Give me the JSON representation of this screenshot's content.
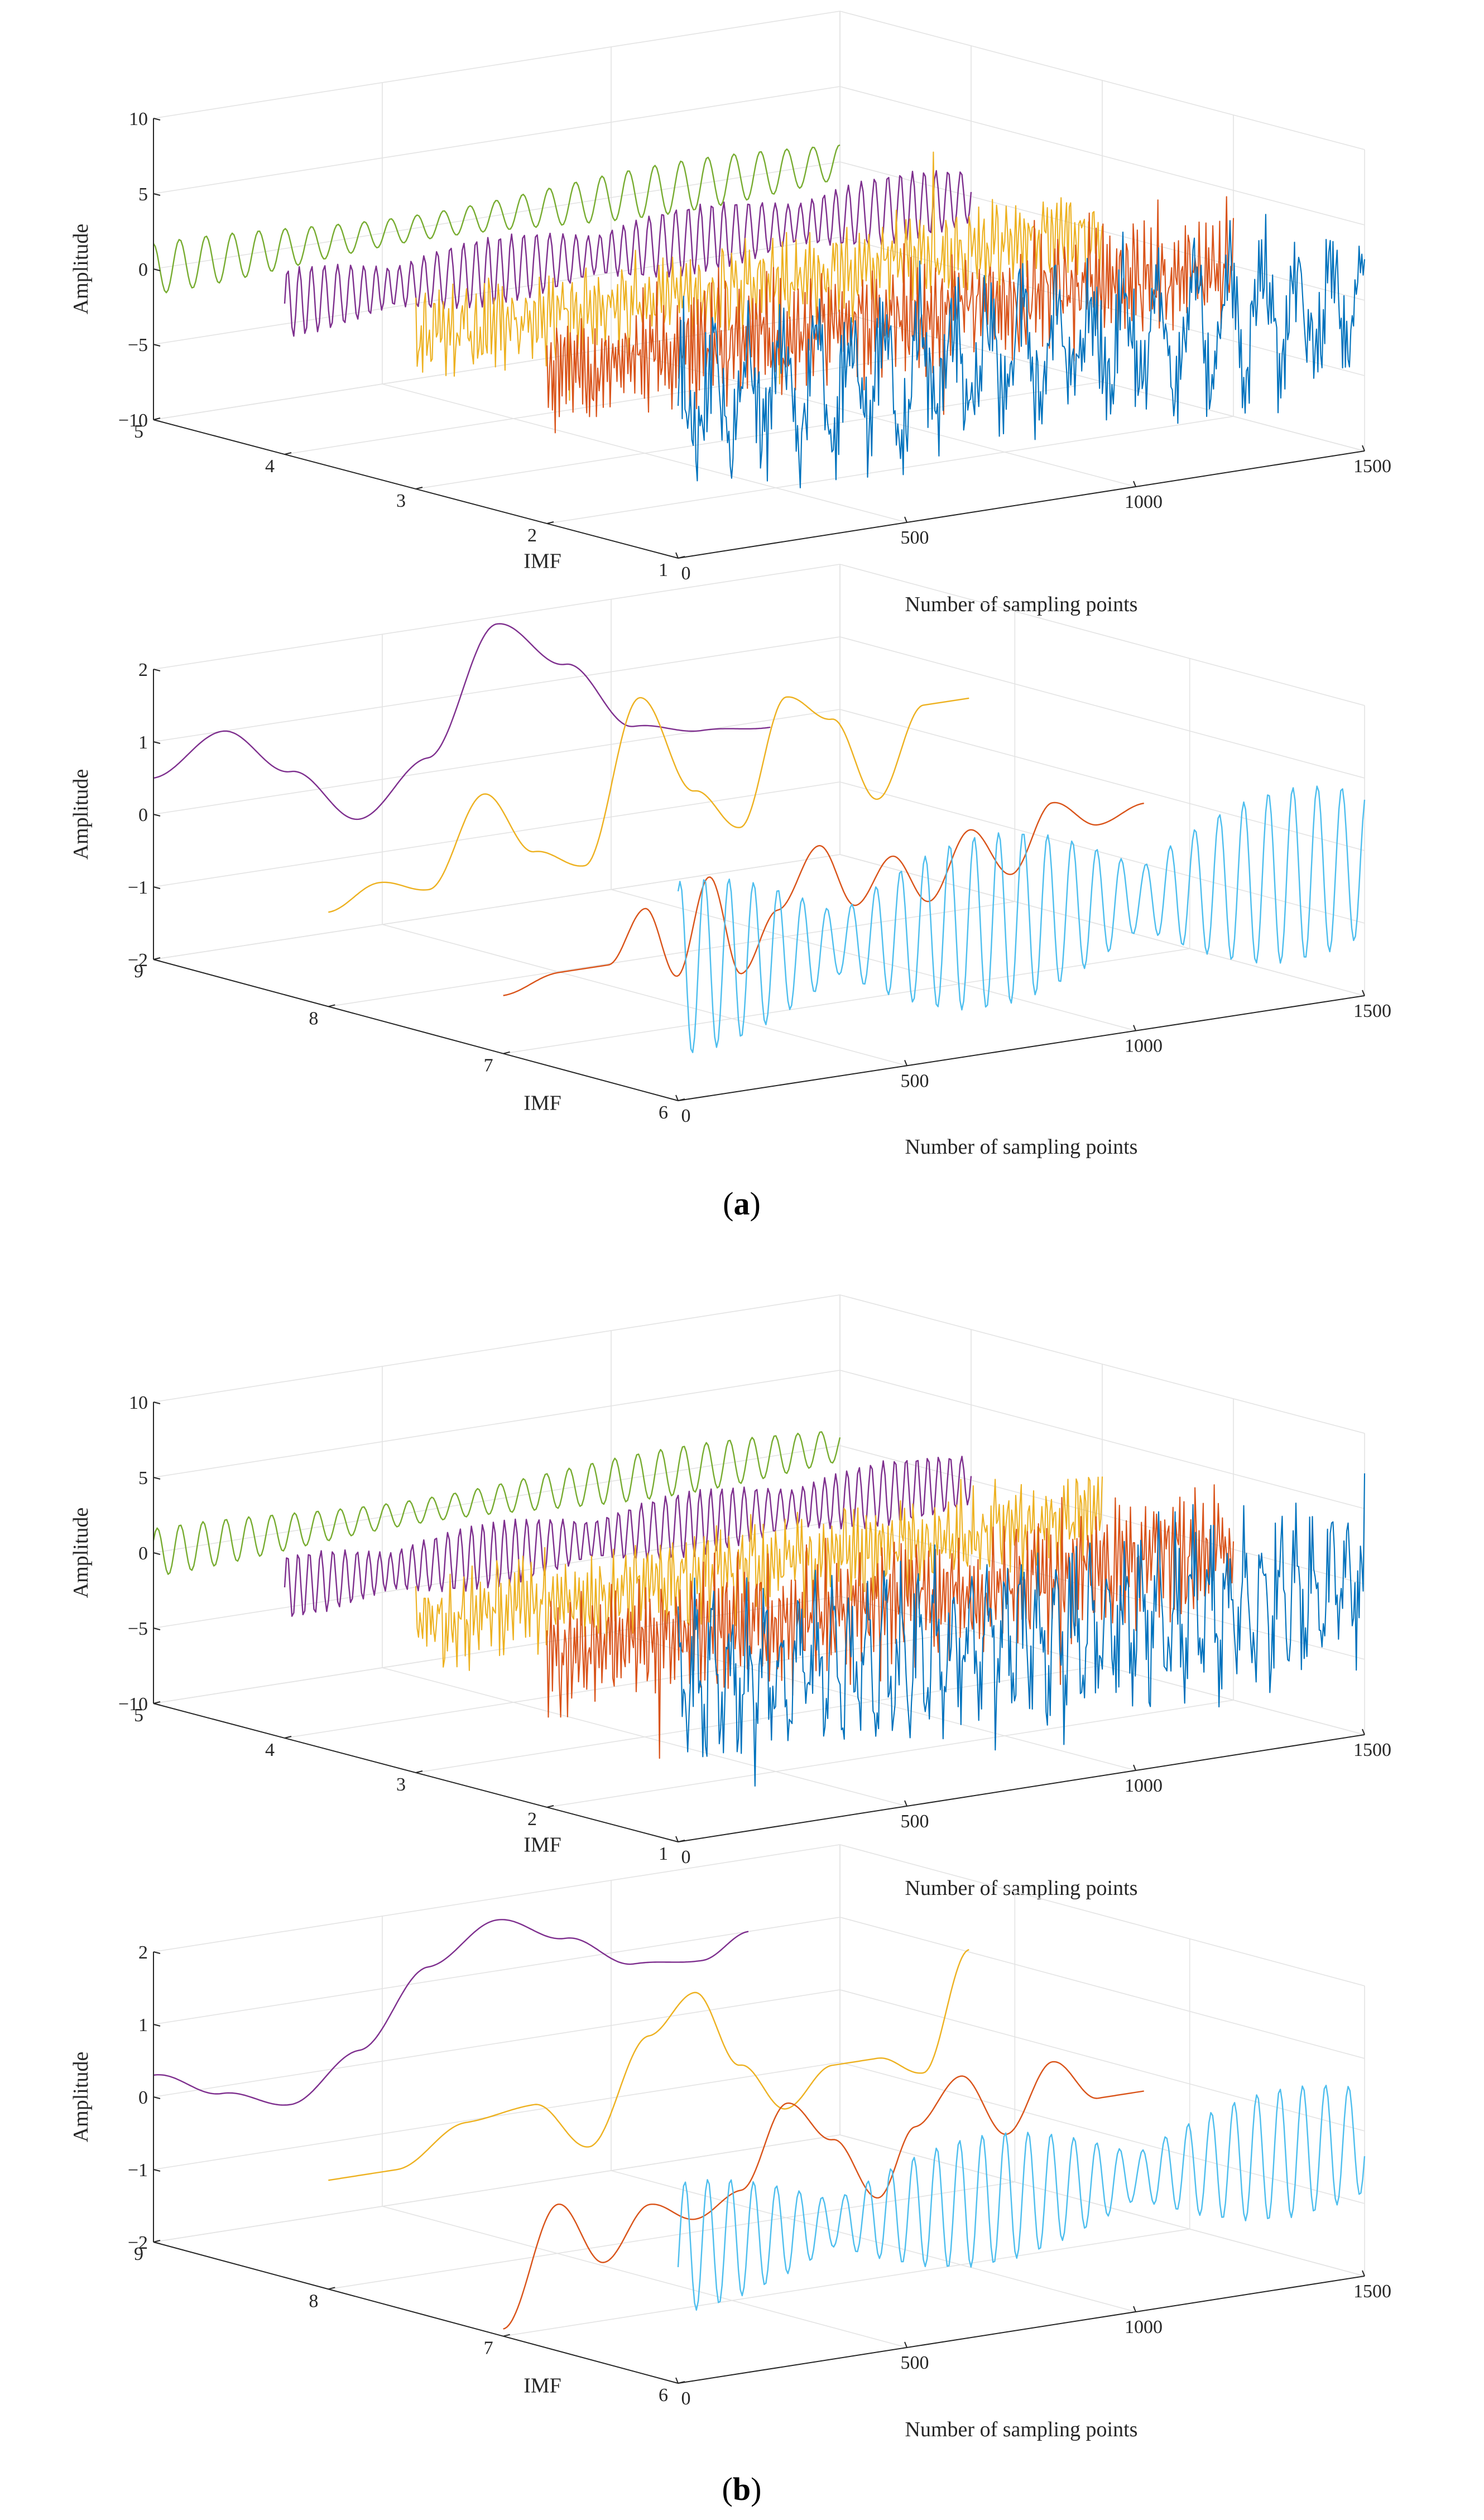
{
  "figure": {
    "panels": [
      {
        "label": "a",
        "charts": [
          {
            "name": "a-top",
            "type": "line",
            "projection": "3d",
            "title": "",
            "xlabel": "Number of sampling points",
            "ylabel": "IMF",
            "zlabel": "Amplitude",
            "xlim": [
              0,
              1500
            ],
            "ylim": [
              1,
              5
            ],
            "zlim": [
              -10,
              10
            ],
            "xticks": [
              "0",
              "500",
              "1000",
              "1500"
            ],
            "yticks": [
              "1",
              "2",
              "3",
              "4",
              "5"
            ],
            "zticks": [
              "−10",
              "−5",
              "0",
              "5",
              "10"
            ],
            "grid": true,
            "series": [
              {
                "name": "IMF5",
                "imf": 5,
                "color": "#77ac30",
                "amplitude": 1.7,
                "periods": 26,
                "kind": "smooth",
                "seed": 11
              },
              {
                "name": "IMF4",
                "imf": 4,
                "color": "#7e2f8e",
                "amplitude": 2.3,
                "periods": 55,
                "kind": "wiggle",
                "seed": 12
              },
              {
                "name": "IMF3",
                "imf": 3,
                "color": "#edb120",
                "amplitude": 3.2,
                "periods": 150,
                "kind": "noise",
                "seed": 13
              },
              {
                "name": "IMF2",
                "imf": 2,
                "color": "#d95319",
                "amplitude": 4.3,
                "periods": 300,
                "kind": "noise",
                "seed": 14
              },
              {
                "name": "IMF1",
                "imf": 1,
                "color": "#0072bd",
                "amplitude": 6.0,
                "periods": 520,
                "kind": "noise",
                "seed": 15
              }
            ]
          },
          {
            "name": "a-bottom",
            "type": "line",
            "projection": "3d",
            "title": "",
            "xlabel": "Number of sampling points",
            "ylabel": "IMF",
            "zlabel": "Amplitude",
            "xlim": [
              0,
              1500
            ],
            "ylim": [
              6,
              9
            ],
            "zlim": [
              -2,
              2
            ],
            "xticks": [
              "0",
              "500",
              "1000",
              "1500"
            ],
            "yticks": [
              "6",
              "7",
              "8",
              "9"
            ],
            "zticks": [
              "−2",
              "−1",
              "0",
              "1",
              "2"
            ],
            "grid": true,
            "series": [
              {
                "name": "IMF9",
                "imf": 9,
                "color": "#7e2f8e",
                "samples": [
                  [
                    0,
                    0.5
                  ],
                  [
                    150,
                    1.0
                  ],
                  [
                    300,
                    0.3
                  ],
                  [
                    450,
                    -0.5
                  ],
                  [
                    600,
                    0.2
                  ],
                  [
                    750,
                    1.9
                  ],
                  [
                    900,
                    1.2
                  ],
                  [
                    1050,
                    0.2
                  ],
                  [
                    1200,
                    0.0
                  ],
                  [
                    1350,
                    -0.1
                  ]
                ]
              },
              {
                "name": "IMF8",
                "imf": 8,
                "color": "#edb120",
                "samples": [
                  [
                    0,
                    -0.7
                  ],
                  [
                    110,
                    -0.4
                  ],
                  [
                    220,
                    -0.6
                  ],
                  [
                    340,
                    0.6
                  ],
                  [
                    450,
                    -0.3
                  ],
                  [
                    560,
                    -0.6
                  ],
                  [
                    680,
                    1.6
                  ],
                  [
                    800,
                    0.2
                  ],
                  [
                    900,
                    -0.4
                  ],
                  [
                    1000,
                    1.3
                  ],
                  [
                    1100,
                    0.9
                  ],
                  [
                    1200,
                    -0.3
                  ],
                  [
                    1300,
                    0.9
                  ],
                  [
                    1400,
                    0.9
                  ]
                ]
              },
              {
                "name": "IMF7",
                "imf": 7,
                "color": "#d95319",
                "samples": [
                  [
                    0,
                    -1.2
                  ],
                  [
                    120,
                    -1.0
                  ],
                  [
                    230,
                    -1.0
                  ],
                  [
                    310,
                    -0.3
                  ],
                  [
                    380,
                    -1.3
                  ],
                  [
                    450,
                    0.0
                  ],
                  [
                    520,
                    -1.4
                  ],
                  [
                    600,
                    -0.6
                  ],
                  [
                    690,
                    0.2
                  ],
                  [
                    770,
                    -0.7
                  ],
                  [
                    850,
                    -0.1
                  ],
                  [
                    930,
                    -0.8
                  ],
                  [
                    1020,
                    0.1
                  ],
                  [
                    1110,
                    -0.6
                  ],
                  [
                    1200,
                    0.3
                  ],
                  [
                    1300,
                    -0.1
                  ],
                  [
                    1400,
                    0.1
                  ]
                ]
              },
              {
                "name": "IMF6",
                "imf": 6,
                "color": "#4dbeee",
                "amplitude": 1.2,
                "periods": 28,
                "kind": "burst",
                "seed": 21
              }
            ]
          }
        ]
      },
      {
        "label": "b",
        "charts": [
          {
            "name": "b-top",
            "type": "line",
            "projection": "3d",
            "title": "",
            "xlabel": "Number of sampling points",
            "ylabel": "IMF",
            "zlabel": "Amplitude",
            "xlim": [
              0,
              1500
            ],
            "ylim": [
              1,
              5
            ],
            "zlim": [
              -10,
              10
            ],
            "xticks": [
              "0",
              "500",
              "1000",
              "1500"
            ],
            "yticks": [
              "1",
              "2",
              "3",
              "4",
              "5"
            ],
            "zticks": [
              "−10",
              "−5",
              "0",
              "5",
              "10"
            ],
            "grid": true,
            "series": [
              {
                "name": "IMF5",
                "imf": 5,
                "color": "#77ac30",
                "amplitude": 1.6,
                "periods": 30,
                "kind": "smooth",
                "seed": 31
              },
              {
                "name": "IMF4",
                "imf": 4,
                "color": "#7e2f8e",
                "amplitude": 2.2,
                "periods": 60,
                "kind": "wiggle",
                "seed": 32
              },
              {
                "name": "IMF3",
                "imf": 3,
                "color": "#edb120",
                "amplitude": 3.3,
                "periods": 160,
                "kind": "noise",
                "seed": 33
              },
              {
                "name": "IMF2",
                "imf": 2,
                "color": "#d95319",
                "amplitude": 4.4,
                "periods": 320,
                "kind": "noise",
                "seed": 34
              },
              {
                "name": "IMF1",
                "imf": 1,
                "color": "#0072bd",
                "amplitude": 6.2,
                "periods": 540,
                "kind": "noise",
                "seed": 35
              }
            ]
          },
          {
            "name": "b-bottom",
            "type": "line",
            "projection": "3d",
            "title": "",
            "xlabel": "Number of sampling points",
            "ylabel": "IMF",
            "zlabel": "Amplitude",
            "xlim": [
              0,
              1500
            ],
            "ylim": [
              6,
              9
            ],
            "zlim": [
              -2,
              2
            ],
            "xticks": [
              "0",
              "500",
              "1000",
              "1500"
            ],
            "yticks": [
              "6",
              "7",
              "8",
              "9"
            ],
            "zticks": [
              "−2",
              "−1",
              "0",
              "1",
              "2"
            ],
            "grid": true,
            "series": [
              {
                "name": "IMF9",
                "imf": 9,
                "color": "#7e2f8e",
                "samples": [
                  [
                    0,
                    0.3
                  ],
                  [
                    150,
                    -0.1
                  ],
                  [
                    300,
                    -0.4
                  ],
                  [
                    450,
                    0.2
                  ],
                  [
                    600,
                    1.2
                  ],
                  [
                    750,
                    1.7
                  ],
                  [
                    900,
                    1.3
                  ],
                  [
                    1050,
                    0.8
                  ],
                  [
                    1200,
                    0.7
                  ],
                  [
                    1300,
                    1.0
                  ]
                ]
              },
              {
                "name": "IMF8",
                "imf": 8,
                "color": "#edb120",
                "samples": [
                  [
                    0,
                    -0.5
                  ],
                  [
                    150,
                    -0.5
                  ],
                  [
                    300,
                    0.0
                  ],
                  [
                    450,
                    0.1
                  ],
                  [
                    570,
                    -0.6
                  ],
                  [
                    700,
                    0.8
                  ],
                  [
                    800,
                    1.3
                  ],
                  [
                    900,
                    0.2
                  ],
                  [
                    1000,
                    -0.5
                  ],
                  [
                    1100,
                    0.0
                  ],
                  [
                    1200,
                    0.0
                  ],
                  [
                    1300,
                    -0.3
                  ],
                  [
                    1400,
                    1.3
                  ]
                ]
              },
              {
                "name": "IMF7",
                "imf": 7,
                "color": "#d95319",
                "samples": [
                  [
                    0,
                    -1.9
                  ],
                  [
                    120,
                    -0.3
                  ],
                  [
                    220,
                    -1.2
                  ],
                  [
                    320,
                    -0.5
                  ],
                  [
                    420,
                    -0.8
                  ],
                  [
                    520,
                    -0.5
                  ],
                  [
                    620,
                    0.6
                  ],
                  [
                    720,
                    0.0
                  ],
                  [
                    820,
                    -0.9
                  ],
                  [
                    900,
                    0.0
                  ],
                  [
                    1000,
                    0.6
                  ],
                  [
                    1100,
                    -0.3
                  ],
                  [
                    1200,
                    0.6
                  ],
                  [
                    1300,
                    0.0
                  ],
                  [
                    1400,
                    0.0
                  ]
                ]
              },
              {
                "name": "IMF6",
                "imf": 6,
                "color": "#4dbeee",
                "amplitude": 0.9,
                "periods": 30,
                "kind": "burst",
                "seed": 41
              }
            ]
          }
        ]
      }
    ]
  }
}
